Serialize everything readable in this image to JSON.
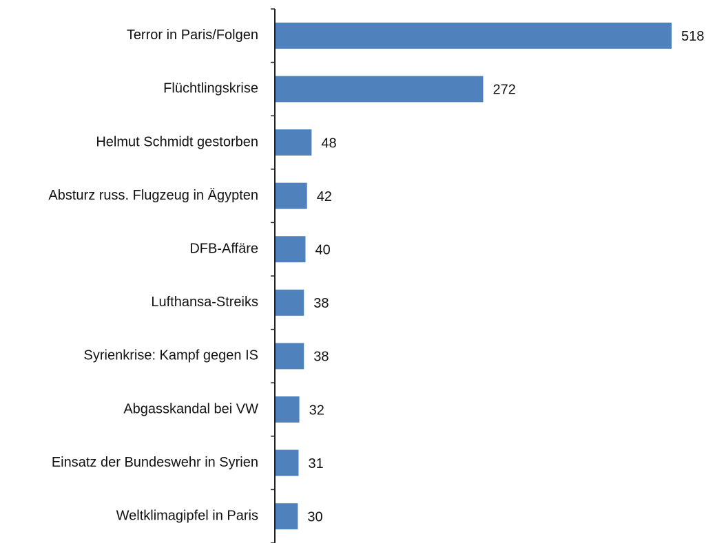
{
  "chart_data": {
    "type": "bar",
    "orientation": "horizontal",
    "categories": [
      "Terror in Paris/Folgen",
      "Flüchtlingskrise",
      "Helmut Schmidt gestorben",
      "Absturz russ. Flugzeug in Ägypten",
      "DFB-Affäre",
      "Lufthansa-Streiks",
      "Syrienkrise: Kampf gegen IS",
      "Abgasskandal bei VW",
      "Einsatz der Bundeswehr in Syrien",
      "Weltklimagipfel in Paris"
    ],
    "values": [
      518,
      272,
      48,
      42,
      40,
      38,
      38,
      32,
      31,
      30
    ],
    "color": "#4f81bd"
  }
}
